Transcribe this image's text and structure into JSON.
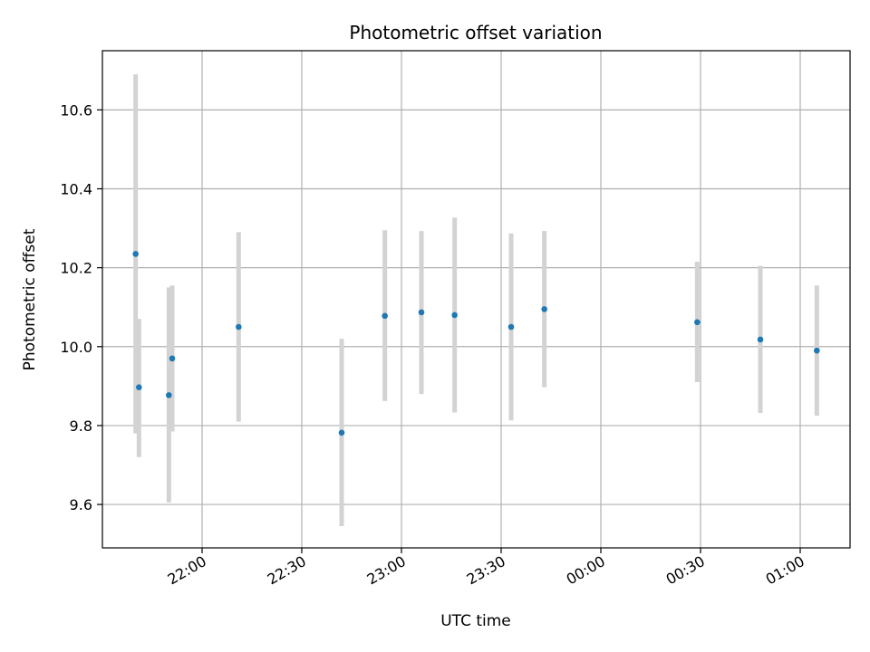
{
  "chart_data": {
    "type": "scatter",
    "title": "Photometric offset variation",
    "xlabel": "UTC time",
    "ylabel": "Photometric offset",
    "grid": true,
    "xlim": [
      "21:30",
      "01:15"
    ],
    "ylim": [
      9.49,
      10.75
    ],
    "x_tick_labels": [
      "22:00",
      "22:30",
      "23:00",
      "23:30",
      "00:00",
      "00:30",
      "01:00"
    ],
    "y_ticks": [
      9.6,
      9.8,
      10.0,
      10.2,
      10.4,
      10.6
    ],
    "y_tick_labels": [
      "9.6",
      "9.8",
      "10.0",
      "10.2",
      "10.4",
      "10.6"
    ],
    "marker_color": "#1f77b4",
    "errorbar_color": "#d3d3d3",
    "points": [
      {
        "time": "21:40",
        "offset": 10.235,
        "lower": 9.78,
        "upper": 10.69
      },
      {
        "time": "21:41",
        "offset": 9.897,
        "lower": 9.72,
        "upper": 10.07
      },
      {
        "time": "21:50",
        "offset": 9.877,
        "lower": 9.605,
        "upper": 10.15
      },
      {
        "time": "21:51",
        "offset": 9.97,
        "lower": 9.785,
        "upper": 10.155
      },
      {
        "time": "22:11",
        "offset": 10.05,
        "lower": 9.81,
        "upper": 10.29
      },
      {
        "time": "22:42",
        "offset": 9.782,
        "lower": 9.545,
        "upper": 10.02
      },
      {
        "time": "22:55",
        "offset": 10.078,
        "lower": 9.862,
        "upper": 10.295
      },
      {
        "time": "23:06",
        "offset": 10.087,
        "lower": 9.88,
        "upper": 10.293
      },
      {
        "time": "23:16",
        "offset": 10.08,
        "lower": 9.833,
        "upper": 10.327
      },
      {
        "time": "23:33",
        "offset": 10.05,
        "lower": 9.813,
        "upper": 10.287
      },
      {
        "time": "23:43",
        "offset": 10.095,
        "lower": 9.897,
        "upper": 10.293
      },
      {
        "time": "00:29",
        "offset": 10.062,
        "lower": 9.91,
        "upper": 10.215
      },
      {
        "time": "00:48",
        "offset": 10.018,
        "lower": 9.832,
        "upper": 10.205
      },
      {
        "time": "01:05",
        "offset": 9.99,
        "lower": 9.825,
        "upper": 10.155
      }
    ]
  }
}
